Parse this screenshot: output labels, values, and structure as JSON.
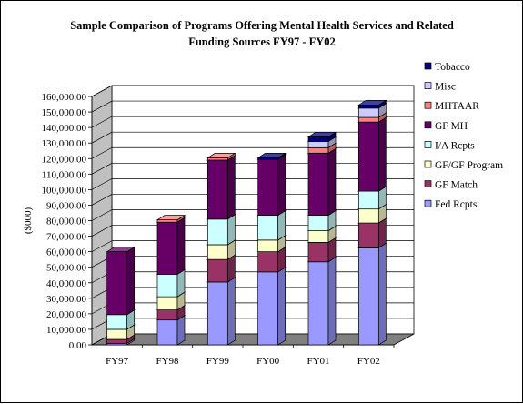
{
  "chart_data": {
    "type": "bar",
    "stacked": true,
    "three_d": true,
    "title_lines": [
      "Sample Comparison of Programs Offering Mental Health Services and Related",
      "Funding Sources FY97 - FY02"
    ],
    "ylabel": "($000)",
    "xlabel": "",
    "ylim": [
      0,
      160000
    ],
    "y_ticks": [
      "0.00",
      "10,000.00",
      "20,000.00",
      "30,000.00",
      "40,000.00",
      "50,000.00",
      "60,000.00",
      "70,000.00",
      "80,000.00",
      "90,000.00",
      "100,000.00",
      "110,000.00",
      "120,000.00",
      "130,000.00",
      "140,000.00",
      "150,000.00",
      "160,000.00"
    ],
    "categories": [
      "FY97",
      "FY98",
      "FY99",
      "FY00",
      "FY01",
      "FY02"
    ],
    "grid": true,
    "legend_position": "right",
    "series": [
      {
        "name": "Fed Rcpts",
        "color": "#9999FF",
        "values": [
          1000,
          16000,
          40500,
          47000,
          53500,
          62500
        ]
      },
      {
        "name": "GF Match",
        "color": "#993366",
        "values": [
          2500,
          6500,
          14500,
          13000,
          12500,
          16000
        ]
      },
      {
        "name": "GF/GF Program",
        "color": "#FFFFCC",
        "values": [
          6500,
          8500,
          9500,
          7500,
          7500,
          9000
        ]
      },
      {
        "name": "I/A Rcpts",
        "color": "#CCFFFF",
        "values": [
          9500,
          14500,
          16500,
          16000,
          10000,
          11500
        ]
      },
      {
        "name": "GF MH",
        "color": "#660066",
        "values": [
          40500,
          33500,
          38000,
          36000,
          40000,
          44500
        ]
      },
      {
        "name": "MHTAAR",
        "color": "#FF8080",
        "values": [
          0,
          1500,
          1500,
          0,
          3500,
          3000
        ]
      },
      {
        "name": "Misc",
        "color": "#CCCCFF",
        "values": [
          0,
          0,
          0,
          0,
          4000,
          6000
        ]
      },
      {
        "name": "Tobacco",
        "color": "#000080",
        "values": [
          0,
          0,
          0,
          1000,
          3000,
          2000
        ]
      }
    ]
  }
}
